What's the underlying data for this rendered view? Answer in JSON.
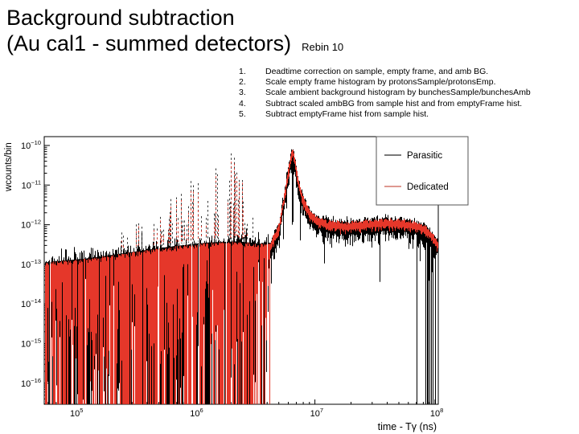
{
  "slide": {
    "title_line1": "Background subtraction",
    "title_line2": "(Au cal1 - summed detectors)",
    "title_suffix": "Rebin 10"
  },
  "steps": {
    "items": [
      {
        "num": "1.",
        "text": "Deadtime correction on sample, empty frame, and amb BG."
      },
      {
        "num": "2.",
        "text": "Scale empty frame histogram by protonsSample/protonsEmp."
      },
      {
        "num": "3.",
        "text": "Scale ambient background histogram by bunchesSample/bunchesAmb"
      },
      {
        "num": "4.",
        "text": "Subtract scaled ambBG from sample hist and from emptyFrame hist."
      },
      {
        "num": "5.",
        "text": "Subtract emptyFrame hist from sample hist."
      }
    ]
  },
  "chart_data": {
    "type": "bar",
    "subtype": "overlaid log-log histograms (ROOT style)",
    "xlabel": "time - Tγ (ns)",
    "ylabel": "wcounts/bin",
    "x_scale": "log",
    "y_scale": "log",
    "x_range_log10": [
      4.745,
      8.027
    ],
    "y_range_log10": [
      -16.53,
      -9.78
    ],
    "x_tick_exponents": [
      5,
      6,
      7,
      8
    ],
    "y_tick_exponents": [
      -10,
      -11,
      -12,
      -13,
      -14,
      -15,
      -16
    ],
    "grid": false,
    "legend": {
      "position": "top-right",
      "entries": [
        {
          "label": "Parasitic",
          "color": "#000000",
          "marker_color": "#4d4d4d"
        },
        {
          "label": "Dedicated",
          "color": "#e5372a",
          "marker_color": "#d4766c"
        }
      ]
    },
    "peak": {
      "center_x_ns": 6500000.0,
      "center_log10_x": 6.81,
      "peak_y_counts": 8.3e-11,
      "peak_log10_y": -10.08
    },
    "envelope_log10": [
      [
        4.745,
        -12.95
      ],
      [
        5.1,
        -12.85
      ],
      [
        5.4,
        -12.72
      ],
      [
        5.8,
        -12.55
      ],
      [
        6.1,
        -12.45
      ],
      [
        6.35,
        -12.42
      ],
      [
        6.55,
        -12.48
      ],
      [
        6.625,
        -12.45
      ],
      [
        6.7,
        -11.95
      ],
      [
        6.745,
        -11.15
      ],
      [
        6.78,
        -10.5
      ],
      [
        6.8,
        -10.15
      ],
      [
        6.815,
        -10.08
      ],
      [
        6.83,
        -10.3
      ],
      [
        6.86,
        -10.85
      ],
      [
        6.9,
        -11.3
      ],
      [
        6.95,
        -11.6
      ],
      [
        7.0,
        -11.78
      ],
      [
        7.1,
        -11.88
      ],
      [
        7.25,
        -11.93
      ],
      [
        7.45,
        -11.88
      ],
      [
        7.6,
        -11.85
      ],
      [
        7.75,
        -11.88
      ],
      [
        7.87,
        -11.94
      ],
      [
        7.95,
        -12.1
      ],
      [
        8.02,
        -12.4
      ]
    ],
    "noise_band": {
      "full_height_region_end_log10_x": 6.625,
      "description": "Below 4e6 ns both histograms fluctuate around the envelope with downward spikes reaching zero (drawn to axis); above 4e6 ns only short downward spikes, with full-depth black spikes clustered near 1e8 ns."
    },
    "resonance_spikes": {
      "log10_x_range": [
        5.35,
        6.5
      ],
      "max_log10_y": -10.2,
      "height_above_band_log10": [
        [
          5.35,
          0.35
        ],
        [
          5.7,
          0.95
        ],
        [
          6.0,
          1.55
        ],
        [
          6.2,
          2.1
        ],
        [
          6.3,
          2.3
        ],
        [
          6.4,
          1.4
        ],
        [
          6.5,
          0.7
        ]
      ],
      "probability": [
        [
          5.35,
          0.18
        ],
        [
          5.9,
          0.32
        ],
        [
          6.2,
          0.45
        ],
        [
          6.5,
          0.3
        ]
      ],
      "style": "dashed vertical spikes, black and red interleaved"
    }
  }
}
